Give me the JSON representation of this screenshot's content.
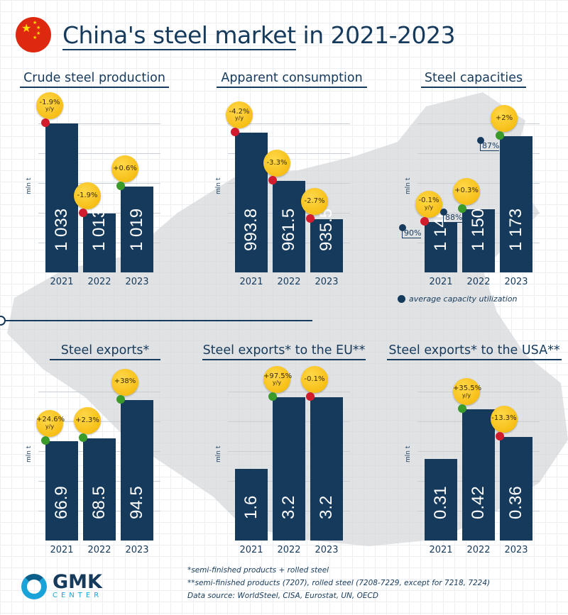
{
  "title": {
    "prefix": "China's steel market",
    "suffix": " in 2021-2023"
  },
  "colors": {
    "bar": "#163a5c",
    "badge": "#f6c21c",
    "increase": "#3a9a2a",
    "decrease": "#d01c2c"
  },
  "unit_label": "mln t",
  "chart_data": [
    {
      "id": "crude",
      "type": "bar",
      "title": "Crude steel production",
      "ylabel": "mln t",
      "categories": [
        "2021",
        "2022",
        "2023"
      ],
      "values": [
        1033,
        1013,
        1019
      ],
      "value_labels": [
        "1 033",
        "1 013",
        "1 019"
      ],
      "ylim": [
        1000,
        1033
      ],
      "changes": [
        {
          "text": "-1.9%",
          "yy": "y/y",
          "dir": "down"
        },
        {
          "text": "-1.9%",
          "yy": "",
          "dir": "down"
        },
        {
          "text": "+0.6%",
          "yy": "",
          "dir": "up"
        }
      ]
    },
    {
      "id": "consumption",
      "type": "bar",
      "title": "Apparent consumption",
      "ylabel": "mln t",
      "categories": [
        "2021",
        "2022",
        "2023"
      ],
      "values": [
        993.8,
        961.5,
        935.5
      ],
      "value_labels": [
        "993.8",
        "961.5",
        "935.5"
      ],
      "ylim": [
        900,
        1000
      ],
      "changes": [
        {
          "text": "-4.2%",
          "yy": "y/y",
          "dir": "down"
        },
        {
          "text": "-3.3%",
          "yy": "",
          "dir": "down"
        },
        {
          "text": "-2.7%",
          "yy": "",
          "dir": "down"
        }
      ]
    },
    {
      "id": "capacities",
      "type": "bar",
      "title": "Steel capacities",
      "ylabel": "mln t",
      "categories": [
        "2021",
        "2022",
        "2023"
      ],
      "values": [
        1146,
        1150,
        1173
      ],
      "value_labels": [
        "1 146",
        "1 150",
        "1 173"
      ],
      "ylim": [
        1130,
        1177
      ],
      "changes": [
        {
          "text": "-0.1%",
          "yy": "y/y",
          "dir": "down"
        },
        {
          "text": "+0.3%",
          "yy": "",
          "dir": "up"
        },
        {
          "text": "+2%",
          "yy": "",
          "dir": "up"
        }
      ],
      "utilization": [
        "90%",
        "88%",
        "87%"
      ],
      "legend": "average capacity utilization"
    },
    {
      "id": "exports",
      "type": "bar",
      "title": "Steel exports*",
      "ylabel": "mln t",
      "categories": [
        "2021",
        "2022",
        "2023"
      ],
      "values": [
        66.9,
        68.5,
        94.5
      ],
      "value_labels": [
        "66.9",
        "68.5",
        "94.5"
      ],
      "ylim": [
        0,
        100
      ],
      "changes": [
        {
          "text": "+24.6%",
          "yy": "y/y",
          "dir": "up"
        },
        {
          "text": "+2.3%",
          "yy": "",
          "dir": "up"
        },
        {
          "text": "+38%",
          "yy": "",
          "dir": "up"
        }
      ]
    },
    {
      "id": "eu",
      "type": "bar",
      "title": "Steel exports* to the EU**",
      "ylabel": "mln t",
      "categories": [
        "2021",
        "2022",
        "2023"
      ],
      "values": [
        1.6,
        3.2,
        3.2
      ],
      "value_labels": [
        "1.6",
        "3.2",
        "3.2"
      ],
      "ylim": [
        0,
        3.33
      ],
      "changes": [
        null,
        {
          "text": "+97.5%",
          "yy": "y/y",
          "dir": "up"
        },
        {
          "text": "-0.1%",
          "yy": "",
          "dir": "down"
        }
      ]
    },
    {
      "id": "usa",
      "type": "bar",
      "title": "Steel exports* to the USA**",
      "ylabel": "mln t",
      "categories": [
        "2021",
        "2022",
        "2023"
      ],
      "values": [
        0.31,
        0.42,
        0.36
      ],
      "value_labels": [
        "0.31",
        "0.42",
        "0.36"
      ],
      "ylim": [
        0.13,
        0.46
      ],
      "changes": [
        null,
        {
          "text": "+35.5%",
          "yy": "y/y",
          "dir": "up"
        },
        {
          "text": "-13.3%",
          "yy": "",
          "dir": "down"
        }
      ]
    }
  ],
  "notes": [
    "*semi-finished products + rolled steel",
    "**semi-finished products (7207), rolled steel (7208-7229, except for 7218, 7224)",
    "Data source: WorldSteel, CISA, Eurostat, UN, OECD"
  ],
  "logo": {
    "name": "GMK",
    "sub": "CENTER"
  }
}
